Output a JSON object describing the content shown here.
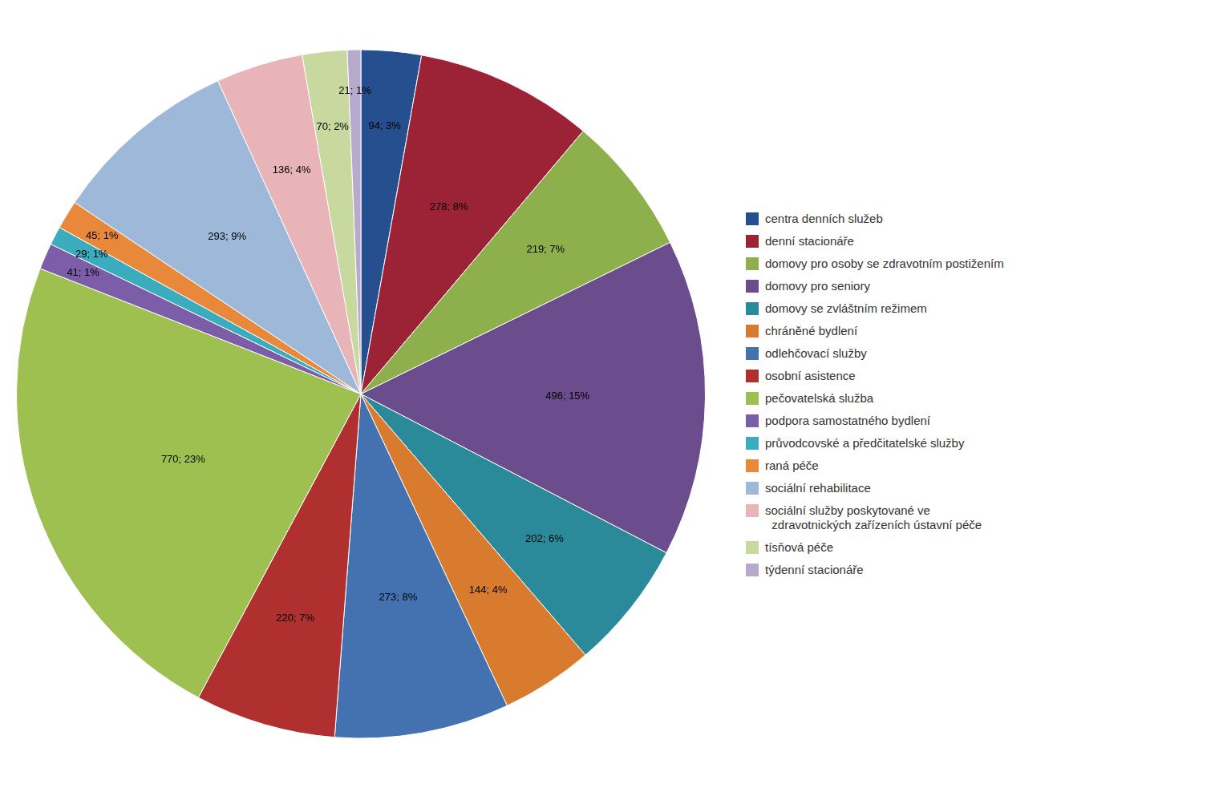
{
  "chart_data": {
    "type": "pie",
    "categories": [
      "centra denních služeb",
      "denní stacionáře",
      "domovy pro osoby se zdravotním postižením",
      "domovy pro seniory",
      "domovy se zvláštním režimem",
      "chráněné bydlení",
      "odlehčovací služby",
      "osobní asistence",
      "pečovatelská služba",
      "podpora samostatného bydlení",
      "průvodcovské a předčitatelské služby",
      "raná péče",
      "sociální rehabilitace",
      "sociální služby poskytované ve\n  zdravotnických zařízeních ústavní péče",
      "tísňová péče",
      "týdenní stacionáře"
    ],
    "values": [
      94,
      278,
      219,
      496,
      202,
      144,
      273,
      220,
      770,
      41,
      29,
      45,
      293,
      136,
      70,
      21
    ],
    "value_labels": [
      "94; 3%",
      "278; 8%",
      "219; 7%",
      "496; 15%",
      "202; 6%",
      "144; 4%",
      "273; 8%",
      "220; 7%",
      "770; 23%",
      "41; 1%",
      "29; 1%",
      "45; 1%",
      "293; 9%",
      "136; 4%",
      "70; 2%",
      "21; 1%"
    ],
    "colors": [
      "#254F8F",
      "#9B2335",
      "#8DB04D",
      "#6B4C8C",
      "#2B8A9A",
      "#D97B2F",
      "#4472B0",
      "#B03030",
      "#9DC050",
      "#7B5EA7",
      "#3AACBE",
      "#E8883A",
      "#9DB8D9",
      "#E8B4B8",
      "#C8D9A0",
      "#B8AACC"
    ],
    "legend": "right",
    "data_labels": true
  }
}
